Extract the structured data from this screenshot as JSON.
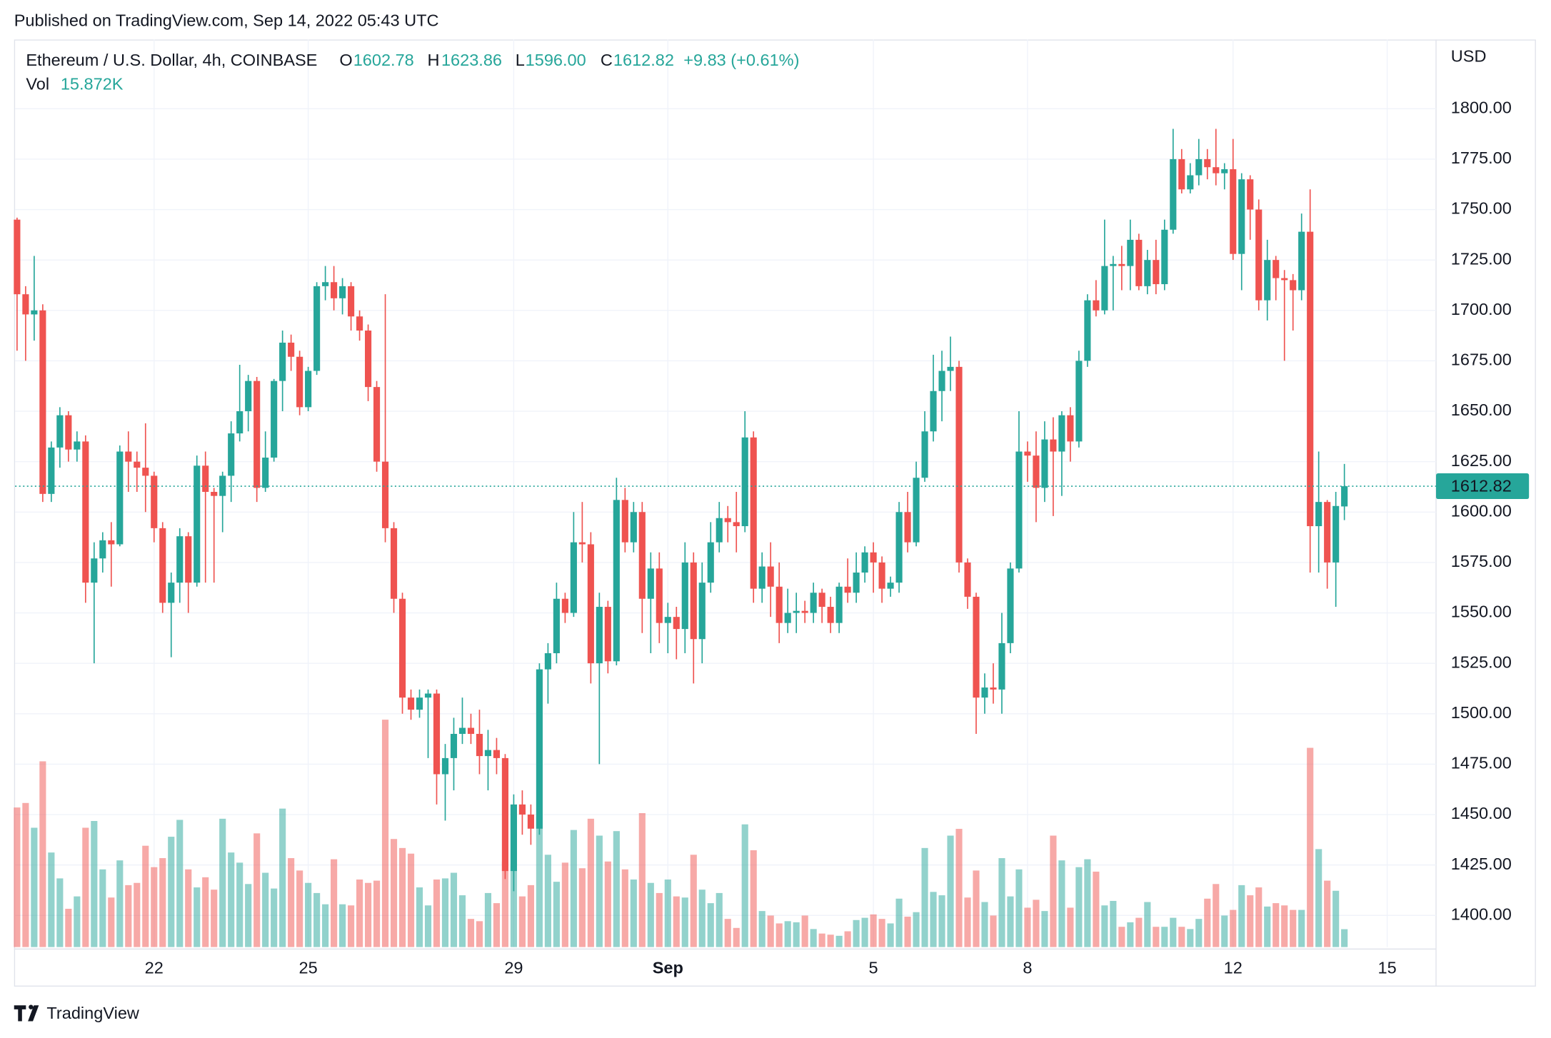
{
  "published": "Published on TradingView.com, Sep 14, 2022 05:43 UTC",
  "footer": "TradingView",
  "chart_data": {
    "type": "candlestick",
    "title": "Ethereum / U.S. Dollar, 4h, COINBASE",
    "ohlc": [
      {
        "name": "O",
        "value": 1602.78
      },
      {
        "name": "H",
        "value": 1623.86
      },
      {
        "name": "L",
        "value": {
          "value": 1596,
          "label": "1596.00"
        }
      },
      {
        "name": "C",
        "value": 1612.82
      }
    ],
    "change": "+9.83 (+0.61%)",
    "volume_legend": {
      "name": "Vol",
      "value": {
        "value": 15.872,
        "label": "15.872K"
      }
    },
    "y_axis_label": "USD",
    "up_color": "#26a69a",
    "down_color": "#ef5350",
    "grid": true,
    "last_price": {
      "value": 1612.82,
      "label": "1612.82"
    },
    "ylim": [
      1384.3,
      1834.3
    ],
    "yticks": [
      {
        "value": 1400,
        "label": "1400.00"
      },
      {
        "value": 1425,
        "label": "1425.00"
      },
      {
        "value": 1450,
        "label": "1450.00"
      },
      {
        "value": 1475,
        "label": "1475.00"
      },
      {
        "value": 1500,
        "label": "1500.00"
      },
      {
        "value": 1525,
        "label": "1525.00"
      },
      {
        "value": 1550,
        "label": "1550.00"
      },
      {
        "value": 1575,
        "label": "1575.00"
      },
      {
        "value": 1600,
        "label": "1600.00"
      },
      {
        "value": 1625,
        "label": "1625.00"
      },
      {
        "value": 1650,
        "label": "1650.00"
      },
      {
        "value": 1675,
        "label": "1675.00"
      },
      {
        "value": 1700,
        "label": "1700.00"
      },
      {
        "value": 1725,
        "label": "1725.00"
      },
      {
        "value": 1750,
        "label": "1750.00"
      },
      {
        "value": 1775,
        "label": "1775.00"
      },
      {
        "value": 1800,
        "label": "1800.00"
      }
    ],
    "xticks": [
      {
        "value": 16,
        "label": "22"
      },
      {
        "value": 34,
        "label": "25"
      },
      {
        "value": 58,
        "label": "29"
      },
      {
        "value": 76,
        "label": "Sep"
      },
      {
        "value": 100,
        "label": "5"
      },
      {
        "value": 118,
        "label": "8"
      },
      {
        "value": 142,
        "label": "12"
      },
      {
        "value": 160,
        "label": "15"
      }
    ],
    "open": [
      1745,
      1708,
      1698,
      1700,
      1609,
      1632,
      1648,
      1631,
      1635,
      1565,
      1577,
      1586,
      1584,
      1630,
      1625,
      1622,
      1618,
      1592,
      1555,
      1565,
      1588,
      1565,
      1623,
      1610,
      1608,
      1618,
      1639,
      1650,
      1665,
      1612,
      1627,
      1665,
      1684,
      1677,
      1652,
      1670,
      1712,
      1714,
      1706,
      1712,
      1697,
      1690,
      1662,
      1625,
      1592,
      1557,
      1508,
      1502,
      1508,
      1510,
      1470,
      1478,
      1490,
      1493,
      1490,
      1479,
      1482,
      1478,
      1422,
      1455,
      1450,
      1443,
      1522,
      1530,
      1557,
      1550,
      1585,
      1584,
      1525,
      1553,
      1526,
      1606,
      1585,
      1600,
      1557,
      1572,
      1545,
      1548,
      1542,
      1575,
      1537,
      1565,
      1585,
      1597,
      1595,
      1593,
      1637,
      1562,
      1573,
      1563,
      1545,
      1550,
      1551,
      1550,
      1560,
      1553,
      1545,
      1563,
      1560,
      1570,
      1580,
      1575,
      1562,
      1565,
      1600,
      1585,
      1617,
      1640,
      1660,
      1670,
      1672,
      1575,
      1558,
      1508,
      1513,
      1512,
      1535,
      1572,
      1630,
      1628,
      1612,
      1636,
      1630,
      1648,
      1635,
      1675,
      1705,
      1700,
      1722,
      1723,
      1722,
      1735,
      1712,
      1725,
      1713,
      1740,
      1775,
      1760,
      1767,
      1775,
      1771,
      1768,
      1770,
      1728,
      1765,
      1750,
      1705,
      1725,
      1716,
      1715,
      1710,
      1739,
      1593,
      1605,
      1575,
      1602.78
    ],
    "high": [
      1746,
      1712,
      1727,
      1703,
      1635,
      1652,
      1650,
      1640,
      1638,
      1585,
      1590,
      1595,
      1633,
      1640,
      1630,
      1644,
      1620,
      1595,
      1570,
      1592,
      1590,
      1628,
      1630,
      1612,
      1620,
      1645,
      1673,
      1668,
      1667,
      1640,
      1666,
      1690,
      1688,
      1680,
      1672,
      1714,
      1722,
      1722,
      1716,
      1714,
      1700,
      1693,
      1665,
      1708,
      1595,
      1560,
      1512,
      1512,
      1512,
      1512,
      1485,
      1498,
      1508,
      1500,
      1502,
      1492,
      1488,
      1480,
      1460,
      1462,
      1455,
      1525,
      1535,
      1565,
      1560,
      1600,
      1605,
      1590,
      1560,
      1556,
      1617,
      1612,
      1605,
      1605,
      1580,
      1580,
      1555,
      1553,
      1585,
      1580,
      1575,
      1595,
      1605,
      1603,
      1610,
      1650,
      1640,
      1580,
      1585,
      1575,
      1562,
      1560,
      1556,
      1565,
      1562,
      1558,
      1565,
      1577,
      1580,
      1583,
      1585,
      1578,
      1568,
      1605,
      1610,
      1625,
      1650,
      1678,
      1680,
      1687,
      1675,
      1577,
      1560,
      1520,
      1525,
      1550,
      1575,
      1650,
      1635,
      1640,
      1645,
      1647,
      1650,
      1652,
      1680,
      1708,
      1715,
      1745,
      1727,
      1732,
      1745,
      1738,
      1730,
      1735,
      1745,
      1790,
      1780,
      1773,
      1785,
      1780,
      1790,
      1773,
      1785,
      1768,
      1767,
      1755,
      1735,
      1727,
      1720,
      1718,
      1748,
      1760,
      1630,
      1606,
      1610,
      1623.86
    ],
    "low": [
      1680,
      1675,
      1685,
      1605,
      1605,
      1622,
      1625,
      1625,
      1555,
      1525,
      1570,
      1563,
      1583,
      1610,
      1610,
      1600,
      1585,
      1550,
      1528,
      1555,
      1550,
      1563,
      1565,
      1565,
      1590,
      1605,
      1635,
      1640,
      1605,
      1610,
      1625,
      1650,
      1670,
      1648,
      1650,
      1668,
      1705,
      1700,
      1698,
      1690,
      1685,
      1655,
      1620,
      1585,
      1550,
      1500,
      1497,
      1498,
      1478,
      1455,
      1447,
      1462,
      1485,
      1485,
      1470,
      1462,
      1470,
      1418,
      1412,
      1440,
      1435,
      1440,
      1505,
      1525,
      1545,
      1548,
      1575,
      1515,
      1475,
      1520,
      1524,
      1580,
      1580,
      1540,
      1530,
      1535,
      1530,
      1527,
      1530,
      1515,
      1525,
      1560,
      1580,
      1585,
      1580,
      1590,
      1555,
      1555,
      1548,
      1535,
      1540,
      1540,
      1545,
      1545,
      1545,
      1540,
      1540,
      1555,
      1555,
      1565,
      1560,
      1555,
      1558,
      1560,
      1580,
      1583,
      1615,
      1635,
      1645,
      1660,
      1570,
      1552,
      1490,
      1500,
      1505,
      1500,
      1530,
      1570,
      1615,
      1595,
      1605,
      1598,
      1608,
      1625,
      1632,
      1672,
      1697,
      1698,
      1700,
      1710,
      1710,
      1710,
      1708,
      1708,
      1710,
      1738,
      1758,
      1758,
      1762,
      1765,
      1762,
      1760,
      1725,
      1710,
      1735,
      1700,
      1695,
      1705,
      1675,
      1690,
      1705,
      1570,
      1570,
      1562,
      1553,
      1596
    ],
    "close": [
      1708,
      1698,
      1700,
      1609,
      1632,
      1648,
      1631,
      1635,
      1565,
      1577,
      1586,
      1584,
      1630,
      1625,
      1622,
      1618,
      1592,
      1555,
      1565,
      1588,
      1565,
      1623,
      1610,
      1608,
      1618,
      1639,
      1650,
      1665,
      1612,
      1627,
      1665,
      1684,
      1677,
      1652,
      1670,
      1712,
      1714,
      1706,
      1712,
      1697,
      1690,
      1662,
      1625,
      1592,
      1557,
      1508,
      1502,
      1508,
      1510,
      1470,
      1478,
      1490,
      1493,
      1490,
      1479,
      1482,
      1478,
      1422,
      1455,
      1450,
      1443,
      1522,
      1530,
      1557,
      1550,
      1585,
      1584,
      1525,
      1553,
      1526,
      1606,
      1585,
      1600,
      1557,
      1572,
      1545,
      1548,
      1542,
      1575,
      1537,
      1565,
      1585,
      1597,
      1595,
      1593,
      1637,
      1562,
      1573,
      1563,
      1545,
      1550,
      1551,
      1550,
      1560,
      1553,
      1545,
      1563,
      1560,
      1570,
      1580,
      1575,
      1562,
      1565,
      1600,
      1585,
      1617,
      1640,
      1660,
      1670,
      1672,
      1575,
      1558,
      1508,
      1513,
      1512,
      1535,
      1572,
      1630,
      1628,
      1612,
      1636,
      1630,
      1648,
      1635,
      1675,
      1705,
      1700,
      1722,
      1723,
      1722,
      1735,
      1712,
      1725,
      1713,
      1740,
      1775,
      1760,
      1767,
      1775,
      1771,
      1768,
      1770,
      1728,
      1765,
      1750,
      1705,
      1725,
      1716,
      1715,
      1710,
      1739,
      1593,
      1605,
      1575,
      1603,
      1612.82
    ],
    "volume": [
      124,
      128,
      106,
      165,
      84,
      61,
      34,
      45,
      106,
      112,
      69,
      44,
      77,
      55,
      57,
      90,
      71,
      79,
      98,
      113,
      69,
      53,
      62,
      51,
      114,
      84,
      75,
      56,
      101,
      66,
      52,
      123,
      79,
      68,
      57,
      48,
      38,
      78,
      38,
      37,
      60,
      57,
      59,
      202,
      96,
      88,
      83,
      53,
      37,
      60,
      61,
      66,
      46,
      25,
      23,
      48,
      39,
      76,
      72,
      45,
      55,
      116,
      82,
      58,
      75,
      104,
      70,
      114,
      99,
      76,
      103,
      69,
      60,
      119,
      57,
      48,
      60,
      45,
      44,
      82,
      51,
      39,
      48,
      25,
      17,
      109,
      86,
      32,
      28,
      21,
      23,
      22,
      28,
      16,
      12,
      11,
      10,
      14,
      24,
      26,
      29,
      25,
      21,
      43,
      27,
      31,
      88,
      49,
      46,
      99,
      105,
      44,
      68,
      40,
      28,
      79,
      45,
      69,
      35,
      42,
      32,
      99,
      77,
      35,
      71,
      78,
      67,
      37,
      41,
      18,
      22,
      26,
      40,
      18,
      18,
      26,
      18,
      16,
      25,
      43,
      56,
      28,
      33,
      55,
      46,
      53,
      36,
      39,
      37,
      33,
      33,
      177,
      87,
      59,
      50,
      15.872
    ]
  }
}
